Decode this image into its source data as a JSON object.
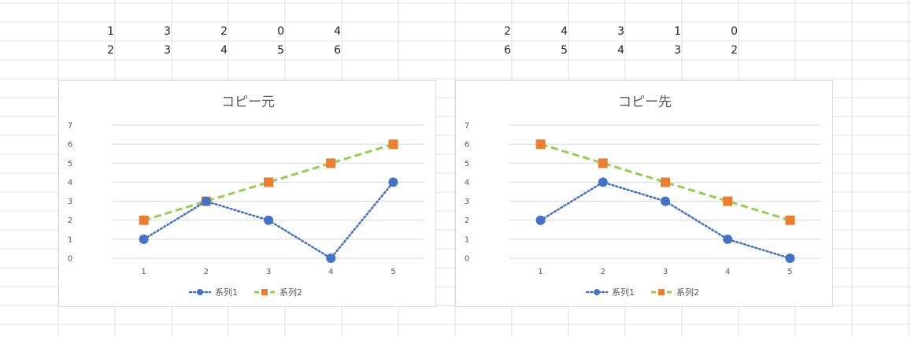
{
  "sheet": {
    "row1": [
      "1",
      "3",
      "2",
      "0",
      "4"
    ],
    "row2": [
      "2",
      "3",
      "4",
      "5",
      "6"
    ],
    "row3": [
      "2",
      "4",
      "3",
      "1",
      "0"
    ],
    "row4": [
      "6",
      "5",
      "4",
      "3",
      "2"
    ]
  },
  "colors": {
    "series1": "#4472C4",
    "series2_line": "#92D050",
    "series2_marker": "#ED7D31",
    "grid": "#d9d9d9",
    "sheet_grid": "#e1e1e1"
  },
  "chart_data": [
    {
      "type": "line",
      "title": "コピー元",
      "categories": [
        "1",
        "2",
        "3",
        "4",
        "5"
      ],
      "yticks": [
        "0",
        "1",
        "2",
        "3",
        "4",
        "5",
        "6",
        "7"
      ],
      "ylim": [
        0,
        7
      ],
      "legend": "bottom",
      "grid": true,
      "series": [
        {
          "name": "系列1",
          "values": [
            1,
            3,
            2,
            0,
            4
          ],
          "marker": "circle",
          "line": "dotted",
          "color": "#4472C4"
        },
        {
          "name": "系列2",
          "values": [
            2,
            3,
            4,
            5,
            6
          ],
          "marker": "square",
          "line": "dashed",
          "color": "#92D050",
          "marker_color": "#ED7D31"
        }
      ]
    },
    {
      "type": "line",
      "title": "コピー先",
      "categories": [
        "1",
        "2",
        "3",
        "4",
        "5"
      ],
      "yticks": [
        "0",
        "1",
        "2",
        "3",
        "4",
        "5",
        "6",
        "7"
      ],
      "ylim": [
        0,
        7
      ],
      "legend": "bottom",
      "grid": true,
      "series": [
        {
          "name": "系列1",
          "values": [
            2,
            4,
            3,
            1,
            0
          ],
          "marker": "circle",
          "line": "dotted",
          "color": "#4472C4"
        },
        {
          "name": "系列2",
          "values": [
            6,
            5,
            4,
            3,
            2
          ],
          "marker": "square",
          "line": "dashed",
          "color": "#92D050",
          "marker_color": "#ED7D31"
        }
      ]
    }
  ]
}
